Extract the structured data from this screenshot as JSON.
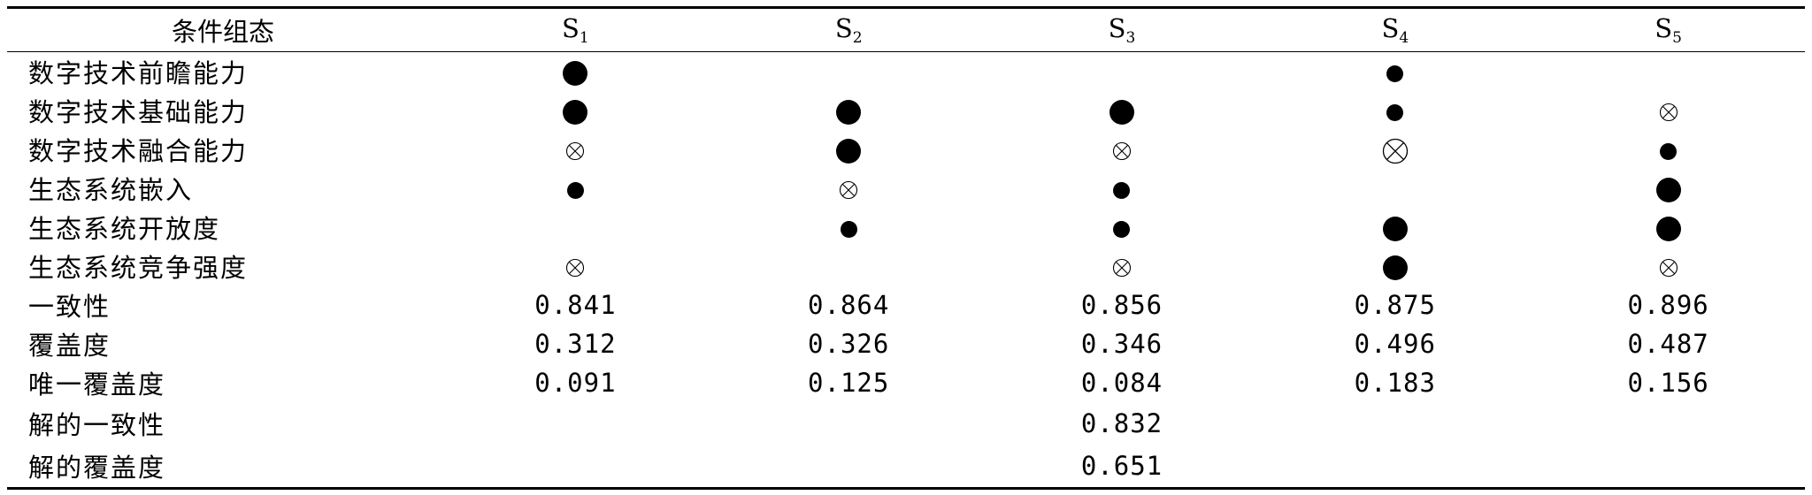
{
  "table": {
    "header_label": "条件组态",
    "solutions": [
      {
        "letter": "S",
        "sub": "1"
      },
      {
        "letter": "S",
        "sub": "2"
      },
      {
        "letter": "S",
        "sub": "3"
      },
      {
        "letter": "S",
        "sub": "4"
      },
      {
        "letter": "S",
        "sub": "5"
      }
    ],
    "condition_rows": [
      {
        "label": "数字技术前瞻能力",
        "cells": [
          "core-present",
          "",
          "",
          "peripheral-present",
          ""
        ]
      },
      {
        "label": "数字技术基础能力",
        "cells": [
          "core-present",
          "core-present",
          "core-present",
          "peripheral-present",
          "peripheral-absent"
        ]
      },
      {
        "label": "数字技术融合能力",
        "cells": [
          "peripheral-absent",
          "core-present",
          "peripheral-absent",
          "core-absent",
          "peripheral-present"
        ]
      },
      {
        "label": "生态系统嵌入",
        "cells": [
          "peripheral-present",
          "peripheral-absent",
          "peripheral-present",
          "",
          "core-present"
        ]
      },
      {
        "label": "生态系统开放度",
        "cells": [
          "",
          "peripheral-present",
          "peripheral-present",
          "core-present",
          "core-present"
        ]
      },
      {
        "label": "生态系统竞争强度",
        "cells": [
          "peripheral-absent",
          "",
          "peripheral-absent",
          "core-present",
          "peripheral-absent"
        ]
      }
    ],
    "metric_rows": [
      {
        "label": "一致性",
        "values": [
          "0.841",
          "0.864",
          "0.856",
          "0.875",
          "0.896"
        ]
      },
      {
        "label": "覆盖度",
        "values": [
          "0.312",
          "0.326",
          "0.346",
          "0.496",
          "0.487"
        ]
      },
      {
        "label": "唯一覆盖度",
        "values": [
          "0.091",
          "0.125",
          "0.084",
          "0.183",
          "0.156"
        ]
      }
    ],
    "solution_rows": [
      {
        "label": "解的一致性",
        "value": "0.832"
      },
      {
        "label": "解的覆盖度",
        "value": "0.651"
      }
    ]
  }
}
